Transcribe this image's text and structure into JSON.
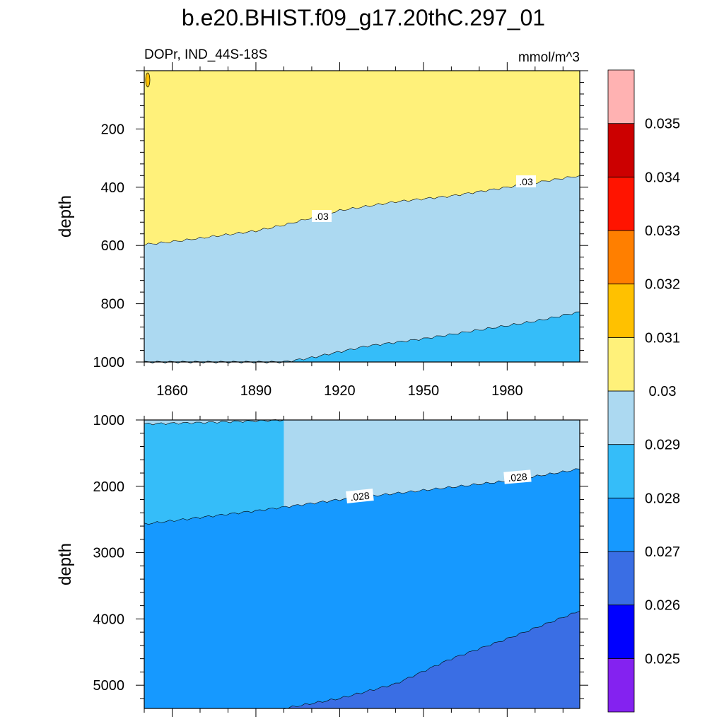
{
  "chart_data": {
    "type": "filled-contour",
    "title": "b.e20.BHIST.f09_g17.20thC.297_01",
    "variable_label": "DOPr, IND_44S-18S",
    "units_label": "mmol/m^3",
    "x_axis": {
      "range": [
        1850,
        2006
      ],
      "tick_labels": [
        "1860",
        "1890",
        "1920",
        "1950",
        "1980"
      ]
    },
    "panels": [
      {
        "id": "upper",
        "ylabel": "depth",
        "y_range": [
          0,
          1000
        ],
        "y_tick_labels": [
          "200",
          "400",
          "600",
          "800",
          "1000"
        ],
        "contour_labels": [
          ".03",
          ".03"
        ],
        "regions": [
          {
            "level": "0.030-0.031",
            "color": "#fff17a"
          },
          {
            "level": "0.029-0.030",
            "color": "#acd9f1"
          },
          {
            "level": "0.028-0.029",
            "color": "#35bdf9"
          }
        ],
        "contours": [
          {
            "level": 0.03,
            "x": [
              1850,
              1862,
              1870,
              1890,
              1900,
              1920,
              1940,
              1960,
              1980,
              2006
            ],
            "depth": [
              597,
              585,
              575,
              550,
              530,
              480,
              450,
              430,
              400,
              360
            ]
          },
          {
            "level": 0.029,
            "x": [
              1850,
              1900,
              1910,
              1930,
              1950,
              1970,
              1990,
              2006
            ],
            "depth": [
              1000,
              1000,
              985,
              945,
              920,
              890,
              860,
              828
            ]
          }
        ]
      },
      {
        "id": "lower",
        "ylabel": "depth",
        "y_range": [
          1000,
          5350
        ],
        "y_tick_labels": [
          "1000",
          "2000",
          "3000",
          "4000",
          "5000"
        ],
        "contour_labels": [
          ".028",
          ".028"
        ],
        "regions": [
          {
            "level": "0.029-0.030",
            "color": "#acd9f1"
          },
          {
            "level": "0.028-0.029",
            "color": "#35bdf9"
          },
          {
            "level": "0.027-0.028",
            "color": "#1699ff"
          },
          {
            "level": "0.026-0.027",
            "color": "#3a6ee4"
          }
        ],
        "contours": [
          {
            "level": 0.029,
            "x": [
              1850,
              1870,
              1890,
              1900
            ],
            "depth": [
              1060,
              1040,
              1015,
              1000
            ]
          },
          {
            "level": 0.028,
            "x": [
              1850,
              1870,
              1890,
              1920,
              1950,
              1980,
              2006
            ],
            "depth": [
              2570,
              2470,
              2370,
              2200,
              2060,
              1920,
              1740
            ]
          },
          {
            "level": 0.027,
            "x": [
              1900,
              1920,
              1940,
              1960,
              1980,
              2006
            ],
            "depth": [
              5350,
              5200,
              4980,
              4600,
              4300,
              3880
            ]
          }
        ]
      }
    ],
    "colorbar": {
      "colors": [
        "#8422f0",
        "#0000ff",
        "#3a6ee4",
        "#1699ff",
        "#35bdf9",
        "#acd9f1",
        "#fff17a",
        "#ffc100",
        "#ff7f00",
        "#ff1400",
        "#cc0000",
        "#ffb2b2"
      ],
      "labels": [
        "0.025",
        "0.026",
        "0.027",
        "0.028",
        "0.029",
        "0.03",
        "0.031",
        "0.032",
        "0.033",
        "0.034",
        "0.035"
      ]
    }
  }
}
